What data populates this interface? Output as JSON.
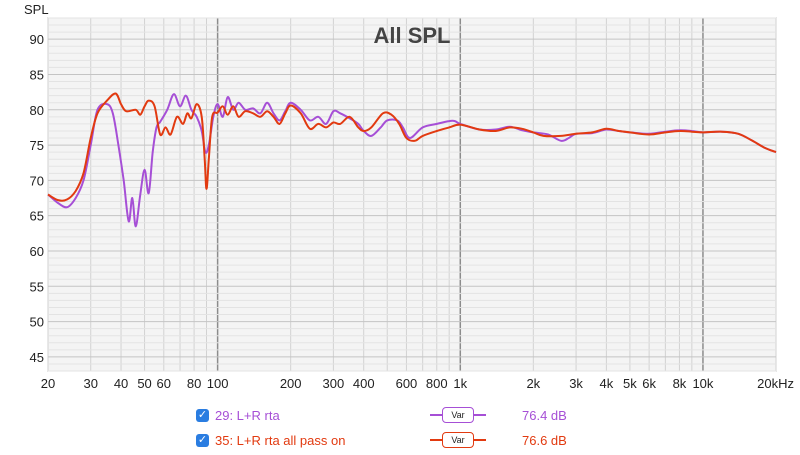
{
  "chart_data": {
    "type": "line",
    "title": "All SPL",
    "ylabel": "SPL",
    "xscale": "log",
    "xlim": [
      20,
      20000
    ],
    "ylim": [
      43,
      93
    ],
    "yticks": [
      45,
      50,
      55,
      60,
      65,
      70,
      75,
      80,
      85,
      90
    ],
    "xticks": [
      {
        "v": 20,
        "label": "20"
      },
      {
        "v": 30,
        "label": "30"
      },
      {
        "v": 40,
        "label": "40"
      },
      {
        "v": 50,
        "label": "50"
      },
      {
        "v": 60,
        "label": "60"
      },
      {
        "v": 80,
        "label": "80"
      },
      {
        "v": 100,
        "label": "100"
      },
      {
        "v": 200,
        "label": "200"
      },
      {
        "v": 300,
        "label": "300"
      },
      {
        "v": 400,
        "label": "400"
      },
      {
        "v": 600,
        "label": "600"
      },
      {
        "v": 800,
        "label": "800"
      },
      {
        "v": 1000,
        "label": "1k"
      },
      {
        "v": 2000,
        "label": "2k"
      },
      {
        "v": 3000,
        "label": "3k"
      },
      {
        "v": 4000,
        "label": "4k"
      },
      {
        "v": 5000,
        "label": "5k"
      },
      {
        "v": 6000,
        "label": "6k"
      },
      {
        "v": 8000,
        "label": "8k"
      },
      {
        "v": 10000,
        "label": "10k"
      },
      {
        "v": 20000,
        "label": "20kHz"
      }
    ],
    "grid": true,
    "series": [
      {
        "name": "29: L+R rta",
        "color": "#a64fd6",
        "points": [
          [
            20,
            68
          ],
          [
            22,
            66.8
          ],
          [
            24,
            66.2
          ],
          [
            26,
            67.5
          ],
          [
            28,
            70
          ],
          [
            30,
            75
          ],
          [
            32,
            80
          ],
          [
            35,
            80.8
          ],
          [
            37,
            79.5
          ],
          [
            39,
            75
          ],
          [
            41,
            70
          ],
          [
            43,
            64.2
          ],
          [
            44.5,
            67.5
          ],
          [
            46,
            63.5
          ],
          [
            48,
            68
          ],
          [
            50,
            71.5
          ],
          [
            52,
            68.2
          ],
          [
            54,
            74
          ],
          [
            56,
            77.5
          ],
          [
            58,
            78.3
          ],
          [
            62,
            80
          ],
          [
            66,
            82.2
          ],
          [
            70,
            80.5
          ],
          [
            74,
            82
          ],
          [
            78,
            80
          ],
          [
            82,
            79
          ],
          [
            86,
            77
          ],
          [
            89,
            74
          ],
          [
            92,
            75
          ],
          [
            96,
            79
          ],
          [
            100,
            80.8
          ],
          [
            105,
            79
          ],
          [
            110,
            81.8
          ],
          [
            116,
            80
          ],
          [
            122,
            81
          ],
          [
            130,
            80
          ],
          [
            140,
            80.2
          ],
          [
            150,
            79.5
          ],
          [
            160,
            81
          ],
          [
            170,
            79.5
          ],
          [
            180,
            78.5
          ],
          [
            190,
            79.8
          ],
          [
            200,
            81
          ],
          [
            220,
            80
          ],
          [
            240,
            78.5
          ],
          [
            260,
            79
          ],
          [
            280,
            78
          ],
          [
            300,
            79.8
          ],
          [
            320,
            79.5
          ],
          [
            350,
            78.8
          ],
          [
            380,
            78
          ],
          [
            400,
            77
          ],
          [
            430,
            76.3
          ],
          [
            470,
            77.5
          ],
          [
            500,
            78.5
          ],
          [
            550,
            78.5
          ],
          [
            580,
            77.5
          ],
          [
            620,
            76
          ],
          [
            700,
            77.5
          ],
          [
            800,
            78
          ],
          [
            900,
            78.4
          ],
          [
            950,
            78.4
          ],
          [
            1000,
            78
          ],
          [
            1200,
            77.2
          ],
          [
            1400,
            77.2
          ],
          [
            1600,
            77.6
          ],
          [
            1800,
            77.1
          ],
          [
            2000,
            76.8
          ],
          [
            2300,
            76.5
          ],
          [
            2600,
            75.6
          ],
          [
            2800,
            76
          ],
          [
            3000,
            76.6
          ],
          [
            3500,
            76.7
          ],
          [
            4000,
            77.2
          ],
          [
            4500,
            77
          ],
          [
            5000,
            76.8
          ],
          [
            6000,
            76.6
          ],
          [
            7000,
            76.9
          ],
          [
            8000,
            77.1
          ],
          [
            9000,
            77
          ],
          [
            10000,
            76.8
          ],
          [
            12000,
            76.9
          ],
          [
            14000,
            76.6
          ],
          [
            16000,
            75.6
          ],
          [
            18000,
            74.6
          ],
          [
            20000,
            74
          ]
        ]
      },
      {
        "name": "35: L+R rta all pass on",
        "color": "#e23a10",
        "points": [
          [
            20,
            68
          ],
          [
            22,
            67.2
          ],
          [
            24,
            67.3
          ],
          [
            26,
            68.5
          ],
          [
            28,
            71
          ],
          [
            30,
            76
          ],
          [
            32,
            79.5
          ],
          [
            35,
            81.3
          ],
          [
            38,
            82.3
          ],
          [
            40,
            80.8
          ],
          [
            42,
            79.8
          ],
          [
            46,
            80
          ],
          [
            48,
            79.3
          ],
          [
            50,
            80.5
          ],
          [
            52,
            81.3
          ],
          [
            55,
            80.5
          ],
          [
            58,
            76.5
          ],
          [
            61,
            77.5
          ],
          [
            64,
            76.5
          ],
          [
            68,
            79
          ],
          [
            72,
            78
          ],
          [
            75,
            79.5
          ],
          [
            78,
            78.8
          ],
          [
            82,
            80.8
          ],
          [
            86,
            79
          ],
          [
            88.5,
            73
          ],
          [
            90,
            68.8
          ],
          [
            92,
            73
          ],
          [
            95,
            79
          ],
          [
            100,
            79.6
          ],
          [
            105,
            80.5
          ],
          [
            110,
            79.3
          ],
          [
            116,
            80.5
          ],
          [
            122,
            79
          ],
          [
            130,
            79.8
          ],
          [
            140,
            79.5
          ],
          [
            150,
            79
          ],
          [
            160,
            79.8
          ],
          [
            170,
            79
          ],
          [
            180,
            78
          ],
          [
            190,
            79.5
          ],
          [
            200,
            80.6
          ],
          [
            220,
            79.5
          ],
          [
            240,
            77.3
          ],
          [
            260,
            78
          ],
          [
            280,
            77.5
          ],
          [
            300,
            78.2
          ],
          [
            320,
            78
          ],
          [
            350,
            79
          ],
          [
            380,
            77.5
          ],
          [
            400,
            77
          ],
          [
            430,
            77.5
          ],
          [
            480,
            79.5
          ],
          [
            520,
            79.3
          ],
          [
            560,
            78
          ],
          [
            600,
            76
          ],
          [
            650,
            75.6
          ],
          [
            700,
            76.3
          ],
          [
            800,
            77
          ],
          [
            900,
            77.5
          ],
          [
            1000,
            77.9
          ],
          [
            1200,
            77.2
          ],
          [
            1400,
            77
          ],
          [
            1600,
            77.5
          ],
          [
            1800,
            77.3
          ],
          [
            2000,
            76.8
          ],
          [
            2200,
            76.3
          ],
          [
            2600,
            76.3
          ],
          [
            3000,
            76.6
          ],
          [
            3500,
            76.8
          ],
          [
            4000,
            77.3
          ],
          [
            4500,
            77
          ],
          [
            5000,
            76.8
          ],
          [
            6000,
            76.5
          ],
          [
            7000,
            76.8
          ],
          [
            8000,
            77
          ],
          [
            9000,
            76.9
          ],
          [
            10000,
            76.8
          ],
          [
            12000,
            76.9
          ],
          [
            14000,
            76.6
          ],
          [
            16000,
            75.6
          ],
          [
            18000,
            74.6
          ],
          [
            20000,
            74
          ]
        ]
      }
    ]
  },
  "legend": [
    {
      "checked": true,
      "label": "29: L+R rta",
      "var": "Var",
      "value": "76.4 dB",
      "color": "#a64fd6"
    },
    {
      "checked": true,
      "label": "35: L+R rta all pass on",
      "var": "Var",
      "value": "76.6 dB",
      "color": "#e23a10"
    }
  ]
}
